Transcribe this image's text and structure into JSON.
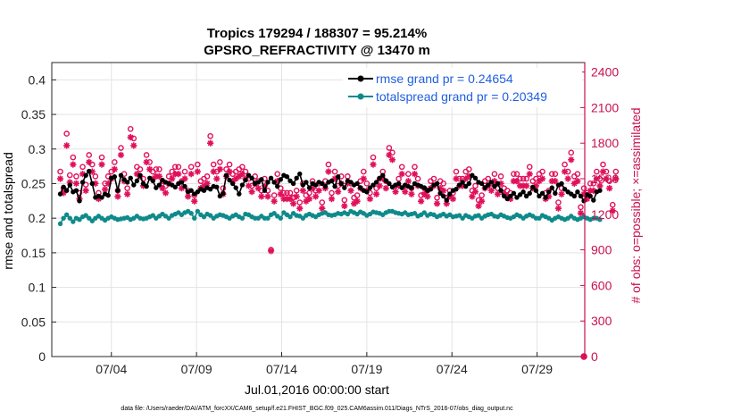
{
  "chart_data": {
    "type": "line",
    "title": "Tropics 179294 / 188307 = 95.214%",
    "subtitle": "GPSRO_REFRACTIVITY @ 13470 m",
    "xlabel": "Jul.01,2016 00:00:00 start",
    "ylabel": "rmse and totalspread",
    "ylabel_right": "# of obs: o=possible; ×=assimilated",
    "footnote": "data file: /Users/raeder/DAI/ATM_forcXX/CAM6_setup/f.e21.FHIST_BGC.f09_025.CAM6assim.011/Diags_NTrS_2016-07/obs_diag_output.nc",
    "xlim": [
      0.5,
      31.8
    ],
    "ylim": [
      0,
      0.425
    ],
    "ylim_right": [
      0,
      2480
    ],
    "x_tick_positions": [
      4,
      9,
      14,
      19,
      24,
      29
    ],
    "x_ticks": [
      "07/04",
      "07/09",
      "07/14",
      "07/19",
      "07/24",
      "07/29"
    ],
    "y_ticks": [
      "0",
      "0.05",
      "0.1",
      "0.15",
      "0.2",
      "0.25",
      "0.3",
      "0.35",
      "0.4"
    ],
    "y_tick_values": [
      0,
      0.05,
      0.1,
      0.15,
      0.2,
      0.25,
      0.3,
      0.35,
      0.4
    ],
    "y_ticks_right": [
      "0",
      "300",
      "600",
      "900",
      "1200",
      "1500",
      "1800",
      "2100",
      "2400"
    ],
    "y_tick_values_right": [
      0,
      300,
      600,
      900,
      1200,
      1500,
      1800,
      2100,
      2400
    ],
    "legend_position": "top-right",
    "series": [
      {
        "name": "rmse grand pr = 0.24654",
        "axis": "left",
        "color": "#000000",
        "marker": "filled-circle",
        "values": [
          0.235,
          0.245,
          0.24,
          0.248,
          0.238,
          0.24,
          0.225,
          0.252,
          0.262,
          0.268,
          0.25,
          0.23,
          0.232,
          0.23,
          0.235,
          0.233,
          0.258,
          0.26,
          0.24,
          0.262,
          0.256,
          0.252,
          0.258,
          0.248,
          0.254,
          0.262,
          0.25,
          0.246,
          0.258,
          0.254,
          0.244,
          0.248,
          0.255,
          0.252,
          0.25,
          0.248,
          0.245,
          0.25,
          0.252,
          0.246,
          0.238,
          0.24,
          0.235,
          0.238,
          0.242,
          0.24,
          0.244,
          0.242,
          0.246,
          0.245,
          0.232,
          0.236,
          0.262,
          0.255,
          0.25,
          0.244,
          0.235,
          0.248,
          0.255,
          0.262,
          0.258,
          0.25,
          0.252,
          0.256,
          0.24,
          0.252,
          0.258,
          0.252,
          0.246,
          0.256,
          0.262,
          0.26,
          0.254,
          0.25,
          0.258,
          0.264,
          0.248,
          0.252,
          0.244,
          0.25,
          0.248,
          0.252,
          0.25,
          0.246,
          0.252,
          0.254,
          0.246,
          0.26,
          0.25,
          0.244,
          0.254,
          0.252,
          0.248,
          0.25,
          0.244,
          0.24,
          0.238,
          0.244,
          0.248,
          0.252,
          0.258,
          0.262,
          0.254,
          0.25,
          0.245,
          0.248,
          0.25,
          0.244,
          0.248,
          0.246,
          0.244,
          0.25,
          0.248,
          0.246,
          0.244,
          0.24,
          0.242,
          0.248,
          0.25,
          0.236,
          0.232,
          0.226,
          0.235,
          0.24,
          0.242,
          0.248,
          0.252,
          0.246,
          0.25,
          0.262,
          0.258,
          0.252,
          0.25,
          0.244,
          0.248,
          0.252,
          0.246,
          0.25,
          0.24,
          0.232,
          0.228,
          0.232,
          0.236,
          0.23,
          0.234,
          0.238,
          0.232,
          0.236,
          0.245,
          0.24,
          0.232,
          0.236,
          0.23,
          0.238,
          0.244,
          0.236,
          0.248,
          0.25,
          0.242,
          0.238,
          0.235,
          0.232,
          0.238,
          0.232,
          0.225,
          0.234,
          0.232,
          0.226,
          0.238,
          0.24
        ]
      },
      {
        "name": "totalspread grand pr = 0.20349",
        "axis": "left",
        "color": "#0f8a8a",
        "marker": "filled-circle",
        "values": [
          0.192,
          0.2,
          0.205,
          0.2,
          0.195,
          0.2,
          0.198,
          0.202,
          0.204,
          0.2,
          0.196,
          0.2,
          0.203,
          0.2,
          0.197,
          0.2,
          0.202,
          0.2,
          0.198,
          0.199,
          0.2,
          0.201,
          0.198,
          0.2,
          0.203,
          0.2,
          0.199,
          0.2,
          0.202,
          0.204,
          0.2,
          0.203,
          0.206,
          0.203,
          0.2,
          0.204,
          0.206,
          0.208,
          0.205,
          0.208,
          0.21,
          0.207,
          0.2,
          0.21,
          0.205,
          0.202,
          0.206,
          0.204,
          0.2,
          0.203,
          0.205,
          0.204,
          0.202,
          0.2,
          0.203,
          0.205,
          0.202,
          0.2,
          0.206,
          0.205,
          0.202,
          0.2,
          0.2,
          0.203,
          0.2,
          0.2,
          0.205,
          0.207,
          0.203,
          0.2,
          0.208,
          0.205,
          0.202,
          0.207,
          0.204,
          0.203,
          0.2,
          0.204,
          0.206,
          0.204,
          0.202,
          0.205,
          0.207,
          0.208,
          0.205,
          0.204,
          0.205,
          0.207,
          0.206,
          0.208,
          0.206,
          0.21,
          0.208,
          0.206,
          0.209,
          0.207,
          0.204,
          0.206,
          0.209,
          0.208,
          0.207,
          0.205,
          0.208,
          0.21,
          0.21,
          0.208,
          0.207,
          0.206,
          0.208,
          0.205,
          0.206,
          0.207,
          0.203,
          0.205,
          0.208,
          0.204,
          0.206,
          0.205,
          0.202,
          0.204,
          0.206,
          0.203,
          0.205,
          0.202,
          0.203,
          0.204,
          0.2,
          0.204,
          0.202,
          0.2,
          0.203,
          0.204,
          0.2,
          0.203,
          0.205,
          0.206,
          0.203,
          0.202,
          0.205,
          0.203,
          0.201,
          0.2,
          0.202,
          0.205,
          0.203,
          0.2,
          0.203,
          0.205,
          0.203,
          0.2,
          0.2,
          0.204,
          0.202,
          0.2,
          0.197,
          0.2,
          0.202,
          0.2,
          0.198,
          0.2,
          0.203,
          0.2,
          0.198,
          0.2,
          0.202,
          0.2,
          0.198,
          0.2,
          0.2,
          0.198
        ]
      },
      {
        "name": "# of obs possible",
        "axis": "right",
        "color": "#e0105a",
        "marker": "open-circle",
        "values": [
          1560,
          1420,
          1880,
          1530,
          1680,
          1520,
          1380,
          1600,
          1450,
          1700,
          1620,
          1520,
          1380,
          1680,
          1460,
          1520,
          1560,
          1640,
          1400,
          1760,
          1540,
          1420,
          1920,
          1840,
          1600,
          1580,
          1500,
          1700,
          1640,
          1560,
          1580,
          1580,
          1480,
          1440,
          1520,
          1560,
          1600,
          1600,
          1480,
          1560,
          1400,
          1600,
          1360,
          1620,
          1480,
          1500,
          1520,
          1860,
          1620,
          1560,
          1640,
          1420,
          1580,
          1620,
          1540,
          1560,
          1580,
          1600,
          1560,
          1500,
          1440,
          1520,
          1480,
          1400,
          1500,
          1400,
          900,
          1360,
          1540,
          1420,
          1380,
          1380,
          1380,
          1340,
          1400,
          1300,
          1460,
          1360,
          1380,
          1480,
          1400,
          1460,
          1300,
          1480,
          1620,
          1380,
          1560,
          1440,
          1520,
          1320,
          1520,
          1460,
          1340,
          1360,
          1480,
          1560,
          1460,
          1380,
          1680,
          1420,
          1500,
          1560,
          1480,
          1760,
          1720,
          1440,
          1500,
          1600,
          1440,
          1540,
          1420,
          1600,
          1500,
          1360,
          1420,
          1400,
          1480,
          1500,
          1340,
          1480,
          1460,
          1340,
          1400,
          1380,
          1560,
          1500,
          1500,
          1560,
          1580,
          1400,
          1440,
          1320,
          1360,
          1480,
          1500,
          1460,
          1540,
          1420,
          1520,
          1420,
          1400,
          1380,
          1540,
          1540,
          1500,
          1500,
          1500,
          1600,
          1480,
          1500,
          1540,
          1560,
          1380,
          1400,
          1540,
          1540,
          1300,
          1420,
          1620,
          1560,
          1720,
          1520,
          1540,
          1260,
          1420,
          1380,
          1460,
          1460,
          1560,
          1500,
          1620,
          1560,
          1480,
          1280,
          1560
        ]
      },
      {
        "name": "# of obs assimilated",
        "axis": "right",
        "color": "#e0105a",
        "marker": "asterisk",
        "values": [
          1500,
          1380,
          1780,
          1470,
          1620,
          1460,
          1330,
          1540,
          1400,
          1640,
          1560,
          1460,
          1330,
          1620,
          1410,
          1460,
          1500,
          1580,
          1350,
          1700,
          1480,
          1370,
          1850,
          1780,
          1540,
          1520,
          1440,
          1640,
          1580,
          1500,
          1520,
          1520,
          1420,
          1380,
          1460,
          1500,
          1540,
          1540,
          1420,
          1500,
          1350,
          1540,
          1310,
          1560,
          1420,
          1440,
          1460,
          1800,
          1560,
          1500,
          1580,
          1370,
          1520,
          1560,
          1480,
          1500,
          1520,
          1540,
          1500,
          1440,
          1390,
          1460,
          1420,
          1350,
          1440,
          1350,
          890,
          1310,
          1480,
          1370,
          1330,
          1330,
          1330,
          1290,
          1350,
          1250,
          1400,
          1310,
          1330,
          1420,
          1350,
          1400,
          1250,
          1420,
          1560,
          1330,
          1500,
          1390,
          1460,
          1270,
          1460,
          1400,
          1290,
          1310,
          1420,
          1500,
          1400,
          1330,
          1620,
          1370,
          1440,
          1500,
          1420,
          1700,
          1660,
          1390,
          1440,
          1540,
          1390,
          1480,
          1370,
          1540,
          1440,
          1310,
          1370,
          1350,
          1420,
          1440,
          1290,
          1420,
          1400,
          1290,
          1350,
          1330,
          1500,
          1440,
          1440,
          1500,
          1520,
          1350,
          1390,
          1270,
          1310,
          1420,
          1440,
          1400,
          1480,
          1370,
          1460,
          1370,
          1350,
          1330,
          1480,
          1480,
          1440,
          1440,
          1440,
          1540,
          1420,
          1440,
          1480,
          1500,
          1330,
          1350,
          1480,
          1480,
          1250,
          1370,
          1560,
          1500,
          1660,
          1460,
          1480,
          1210,
          1370,
          1330,
          1400,
          1400,
          1500,
          1440,
          1560,
          1500,
          1420,
          1230,
          1500
        ]
      }
    ],
    "extra_points": {
      "name": "final obs count",
      "x": 31.75,
      "values_right": [
        0
      ]
    }
  }
}
